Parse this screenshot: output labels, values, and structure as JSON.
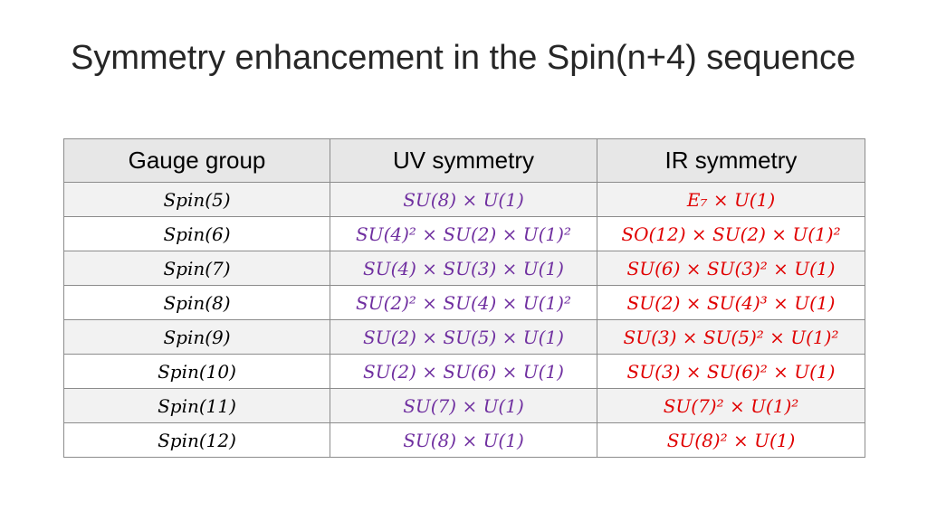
{
  "title": "Symmetry enhancement in the Spin(n+4) sequence",
  "colors": {
    "uv_text": "#7030a0",
    "ir_text": "#e00000",
    "header_bg": "#e7e7e7",
    "border": "#8c8c8c"
  },
  "table": {
    "headers": [
      "Gauge group",
      "UV symmetry",
      "IR symmetry"
    ],
    "rows": [
      {
        "gauge": "Spin(5)",
        "uv": "SU(8) × U(1)",
        "ir": "E₇ × U(1)"
      },
      {
        "gauge": "Spin(6)",
        "uv": "SU(4)² × SU(2) × U(1)²",
        "ir": "SO(12) × SU(2) × U(1)²"
      },
      {
        "gauge": "Spin(7)",
        "uv": "SU(4) × SU(3) × U(1)",
        "ir": "SU(6) × SU(3)² × U(1)"
      },
      {
        "gauge": "Spin(8)",
        "uv": "SU(2)² × SU(4) × U(1)²",
        "ir": "SU(2) × SU(4)³ × U(1)"
      },
      {
        "gauge": "Spin(9)",
        "uv": "SU(2) × SU(5) × U(1)",
        "ir": "SU(3) × SU(5)² × U(1)²"
      },
      {
        "gauge": "Spin(10)",
        "uv": "SU(2) × SU(6) × U(1)",
        "ir": "SU(3) × SU(6)² × U(1)"
      },
      {
        "gauge": "Spin(11)",
        "uv": "SU(7) × U(1)",
        "ir": "SU(7)² × U(1)²"
      },
      {
        "gauge": "Spin(12)",
        "uv": "SU(8) × U(1)",
        "ir": "SU(8)² × U(1)"
      }
    ]
  }
}
